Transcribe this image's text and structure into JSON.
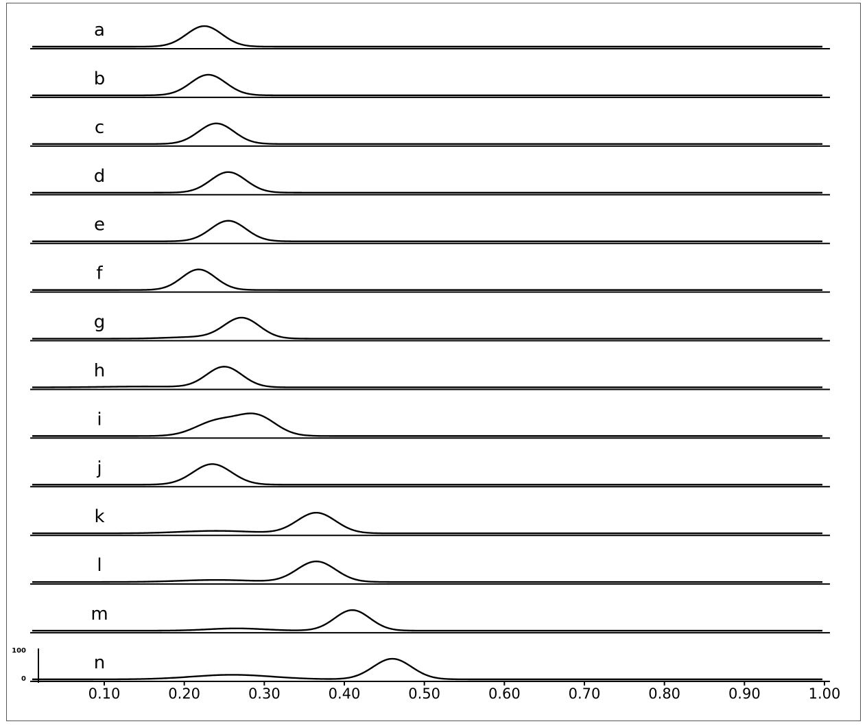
{
  "chart_data": {
    "type": "line",
    "title": "",
    "xlabel": "",
    "ylabel": "",
    "xlim": [
      0.0,
      1.0
    ],
    "ylim": [
      0,
      100
    ],
    "grid": false,
    "x_ticks": [
      "0.10",
      "0.20",
      "0.30",
      "0.40",
      "0.50",
      "0.60",
      "0.70",
      "0.80",
      "0.90",
      "1.00"
    ],
    "y_scale_labels": [
      "100",
      "0"
    ],
    "series": [
      {
        "name": "a",
        "peaks": [
          {
            "center": 0.225,
            "height": 100,
            "width": 0.022
          }
        ]
      },
      {
        "name": "b",
        "peaks": [
          {
            "center": 0.23,
            "height": 100,
            "width": 0.022
          }
        ]
      },
      {
        "name": "c",
        "peaks": [
          {
            "center": 0.24,
            "height": 100,
            "width": 0.022
          }
        ]
      },
      {
        "name": "d",
        "peaks": [
          {
            "center": 0.255,
            "height": 100,
            "width": 0.022
          }
        ]
      },
      {
        "name": "e",
        "peaks": [
          {
            "center": 0.255,
            "height": 100,
            "width": 0.022
          }
        ]
      },
      {
        "name": "f",
        "peaks": [
          {
            "center": 0.218,
            "height": 100,
            "width": 0.021
          }
        ]
      },
      {
        "name": "g",
        "peaks": [
          {
            "center": 0.272,
            "height": 100,
            "width": 0.022
          },
          {
            "center": 0.215,
            "height": 8,
            "width": 0.035
          }
        ]
      },
      {
        "name": "h",
        "peaks": [
          {
            "center": 0.25,
            "height": 100,
            "width": 0.022
          },
          {
            "center": 0.15,
            "height": 4,
            "width": 0.05
          }
        ]
      },
      {
        "name": "i",
        "peaks": [
          {
            "center": 0.29,
            "height": 96,
            "width": 0.024
          },
          {
            "center": 0.24,
            "height": 70,
            "width": 0.026
          }
        ]
      },
      {
        "name": "j",
        "peaks": [
          {
            "center": 0.235,
            "height": 100,
            "width": 0.024
          }
        ]
      },
      {
        "name": "k",
        "peaks": [
          {
            "center": 0.365,
            "height": 100,
            "width": 0.024
          },
          {
            "center": 0.24,
            "height": 12,
            "width": 0.045
          }
        ]
      },
      {
        "name": "l",
        "peaks": [
          {
            "center": 0.365,
            "height": 100,
            "width": 0.024
          },
          {
            "center": 0.24,
            "height": 10,
            "width": 0.045
          }
        ]
      },
      {
        "name": "m",
        "peaks": [
          {
            "center": 0.41,
            "height": 100,
            "width": 0.022
          },
          {
            "center": 0.265,
            "height": 11,
            "width": 0.035
          }
        ]
      },
      {
        "name": "n",
        "peaks": [
          {
            "center": 0.46,
            "height": 100,
            "width": 0.024
          },
          {
            "center": 0.26,
            "height": 22,
            "width": 0.05
          }
        ]
      }
    ]
  }
}
